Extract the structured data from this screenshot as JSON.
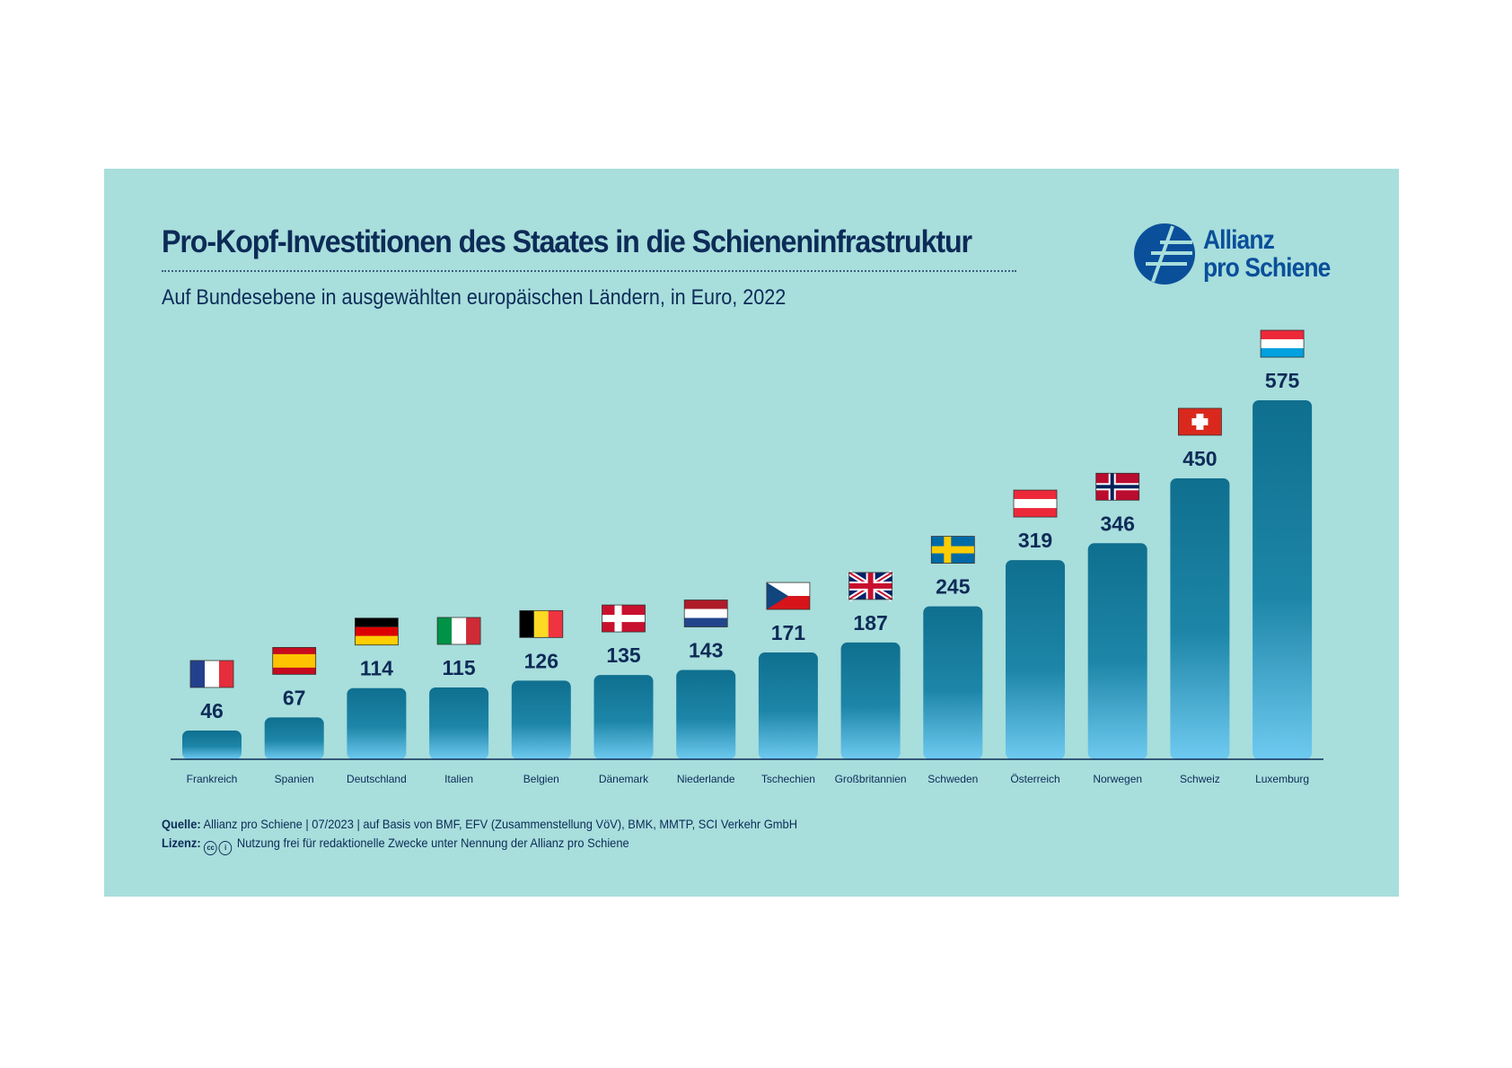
{
  "title": "Pro-Kopf-Investitionen des Staates in die Schieneninfrastruktur",
  "subtitle": "Auf Bundesebene in ausgewählten europäischen Ländern, in Euro, 2022",
  "logo": {
    "line1": "Allianz",
    "line2": "pro Schiene",
    "color": "#0a4f9a"
  },
  "footer": {
    "source_label": "Quelle:",
    "source_text": "Allianz pro Schiene | 07/2023 | auf Basis von BMF, EFV (Zusammenstellung VöV), BMK, MMTP, SCI Verkehr GmbH",
    "license_label": "Lizenz:",
    "license_icons": [
      "cc-icon",
      "attribution-icon"
    ],
    "license_text": "Nutzung frei für redaktionelle Zwecke unter Nennung der Allianz pro Schiene"
  },
  "colors": {
    "background": "#a8dedc",
    "bar_top": "#0f6f8f",
    "bar_bottom": "#6fcaf0",
    "text": "#0d2b57"
  },
  "chart_data": {
    "type": "bar",
    "title": "Pro-Kopf-Investitionen des Staates in die Schieneninfrastruktur",
    "subtitle": "Auf Bundesebene in ausgewählten europäischen Ländern, in Euro, 2022",
    "categories": [
      "Frankreich",
      "Spanien",
      "Deutschland",
      "Italien",
      "Belgien",
      "Dänemark",
      "Niederlande",
      "Tschechien",
      "Großbritannien",
      "Schweden",
      "Österreich",
      "Norwegen",
      "Schweiz",
      "Luxemburg"
    ],
    "flags": [
      "fr",
      "es",
      "de",
      "it",
      "be",
      "dk",
      "nl",
      "cz",
      "gb",
      "se",
      "at",
      "no",
      "ch",
      "lu"
    ],
    "values": [
      46,
      67,
      114,
      115,
      126,
      135,
      143,
      171,
      187,
      245,
      319,
      346,
      450,
      575
    ],
    "data_labels": true,
    "grid": false,
    "ylim": [
      0,
      575
    ]
  }
}
